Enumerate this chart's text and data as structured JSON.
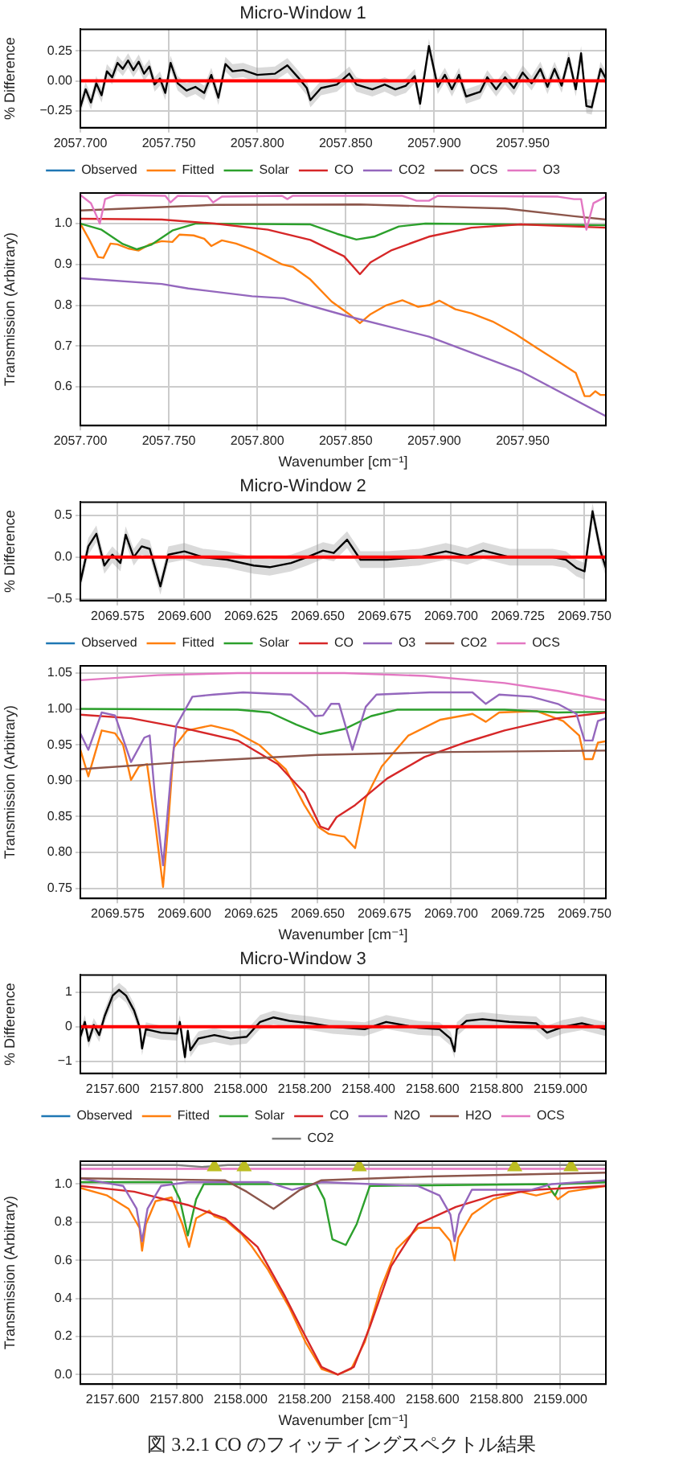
{
  "chart_data": [
    {
      "type": "line",
      "title": "Micro-Window 1",
      "ylabel": "% Difference",
      "grid": true,
      "xlim": [
        2057.7,
        2057.997
      ],
      "ylim": [
        -0.39,
        0.43
      ],
      "xticks": [
        {
          "value": 2057.7,
          "label": "2057.700"
        },
        {
          "value": 2057.75,
          "label": "2057.750"
        },
        {
          "value": 2057.8,
          "label": "2057.800"
        },
        {
          "value": 2057.85,
          "label": "2057.850"
        },
        {
          "value": 2057.9,
          "label": "2057.900"
        },
        {
          "value": 2057.95,
          "label": "2057.950"
        }
      ],
      "yticks": [
        {
          "value": -0.25,
          "label": "−0.25"
        },
        {
          "value": 0,
          "label": "0.00"
        },
        {
          "value": 0.25,
          "label": "0.25"
        }
      ],
      "ref_lines": [
        {
          "axis": "y",
          "value": 0,
          "color": "#ff0000"
        }
      ],
      "x": [
        2057.7,
        2057.703,
        2057.706,
        2057.709,
        2057.712,
        2057.715,
        2057.718,
        2057.721,
        2057.724,
        2057.727,
        2057.73,
        2057.733,
        2057.736,
        2057.739,
        2057.742,
        2057.745,
        2057.748,
        2057.751,
        2057.755,
        2057.76,
        2057.765,
        2057.77,
        2057.774,
        2057.778,
        2057.782,
        2057.786,
        2057.792,
        2057.8,
        2057.81,
        2057.817,
        2057.823,
        2057.828,
        2057.83,
        2057.836,
        2057.845,
        2057.852,
        2057.856,
        2057.865,
        2057.872,
        2057.878,
        2057.884,
        2057.889,
        2057.892,
        2057.897,
        2057.902,
        2057.906,
        2057.91,
        2057.914,
        2057.918,
        2057.926,
        2057.93,
        2057.935,
        2057.94,
        2057.945,
        2057.95,
        2057.955,
        2057.96,
        2057.964,
        2057.968,
        2057.972,
        2057.976,
        2057.98,
        2057.983,
        2057.986,
        2057.989,
        2057.994,
        2057.997
      ],
      "series": [
        {
          "color": "#000000",
          "values": [
            -0.22,
            -0.07,
            -0.18,
            -0.02,
            -0.12,
            0.08,
            0.03,
            0.15,
            0.1,
            0.17,
            0.09,
            0.16,
            0.06,
            0.12,
            -0.03,
            0.02,
            -0.1,
            0.15,
            -0.02,
            -0.08,
            -0.05,
            -0.1,
            0.05,
            -0.14,
            0.14,
            0.08,
            0.09,
            0.05,
            0.06,
            0.13,
            0.03,
            -0.06,
            -0.16,
            -0.06,
            -0.03,
            0.06,
            -0.03,
            -0.07,
            -0.03,
            -0.07,
            -0.04,
            0.04,
            -0.19,
            0.29,
            -0.05,
            0.05,
            -0.07,
            0.05,
            -0.13,
            -0.09,
            0.03,
            -0.07,
            0.03,
            -0.06,
            0.07,
            -0.02,
            0.1,
            -0.05,
            0.1,
            -0.04,
            0.19,
            -0.07,
            0.23,
            -0.21,
            -0.22,
            0.1,
            0.02
          ],
          "lower": [
            -0.28,
            -0.13,
            -0.24,
            -0.08,
            -0.18,
            0.02,
            -0.03,
            0.09,
            0.04,
            0.11,
            0.03,
            0.1,
            0.0,
            0.06,
            -0.09,
            -0.04,
            -0.16,
            0.09,
            -0.08,
            -0.14,
            -0.11,
            -0.16,
            -0.01,
            -0.2,
            0.08,
            0.02,
            0.03,
            -0.01,
            0.0,
            0.07,
            -0.03,
            -0.12,
            -0.22,
            -0.12,
            -0.09,
            0.0,
            -0.09,
            -0.13,
            -0.09,
            -0.13,
            -0.1,
            -0.02,
            -0.25,
            0.23,
            -0.11,
            -0.01,
            -0.13,
            -0.01,
            -0.19,
            -0.15,
            -0.03,
            -0.13,
            -0.03,
            -0.12,
            0.01,
            -0.08,
            0.04,
            -0.11,
            0.04,
            -0.1,
            0.13,
            -0.13,
            0.17,
            -0.27,
            -0.28,
            0.04,
            -0.04
          ],
          "upper": [
            -0.16,
            -0.01,
            -0.12,
            0.04,
            -0.06,
            0.14,
            0.09,
            0.21,
            0.16,
            0.23,
            0.15,
            0.22,
            0.12,
            0.18,
            0.03,
            0.08,
            -0.04,
            0.21,
            0.04,
            -0.02,
            0.01,
            -0.04,
            0.11,
            -0.08,
            0.2,
            0.14,
            0.15,
            0.11,
            0.12,
            0.19,
            0.09,
            0.0,
            -0.1,
            0.0,
            0.03,
            0.12,
            0.03,
            -0.01,
            0.03,
            -0.01,
            0.02,
            0.1,
            -0.13,
            0.35,
            0.01,
            0.11,
            -0.01,
            0.11,
            -0.07,
            -0.03,
            0.09,
            -0.01,
            0.09,
            0.0,
            0.13,
            0.04,
            0.16,
            0.01,
            0.16,
            0.02,
            0.25,
            -0.01,
            0.29,
            -0.15,
            -0.16,
            0.16,
            0.08
          ]
        }
      ]
    },
    {
      "type": "line",
      "xlabel": "Wavenumber [cm⁻¹]",
      "ylabel": "Transmission (Arbitrary)",
      "grid": true,
      "legend": "top",
      "xlim": [
        2057.7,
        2057.997
      ],
      "ylim": [
        0.505,
        1.075
      ],
      "xticks": [
        {
          "value": 2057.7,
          "label": "2057.700"
        },
        {
          "value": 2057.75,
          "label": "2057.750"
        },
        {
          "value": 2057.8,
          "label": "2057.800"
        },
        {
          "value": 2057.85,
          "label": "2057.850"
        },
        {
          "value": 2057.9,
          "label": "2057.900"
        },
        {
          "value": 2057.95,
          "label": "2057.950"
        }
      ],
      "yticks": [
        {
          "value": 0.6,
          "label": "0.6"
        },
        {
          "value": 0.7,
          "label": "0.7"
        },
        {
          "value": 0.8,
          "label": "0.8"
        },
        {
          "value": 0.9,
          "label": "0.9"
        },
        {
          "value": 1.0,
          "label": "1.0"
        }
      ],
      "x": [
        2057.7,
        2057.705,
        2057.71,
        2057.713,
        2057.717,
        2057.721,
        2057.727,
        2057.733,
        2057.739,
        2057.746,
        2057.752,
        2057.756,
        2057.764,
        2057.77,
        2057.774,
        2057.78,
        2057.788,
        2057.797,
        2057.806,
        2057.814,
        2057.82,
        2057.83,
        2057.842,
        2057.852,
        2057.858,
        2057.864,
        2057.873,
        2057.882,
        2057.891,
        2057.897,
        2057.903,
        2057.912,
        2057.921,
        2057.933,
        2057.946,
        2057.958,
        2057.97,
        2057.98,
        2057.985,
        2057.988,
        2057.991,
        2057.994,
        2057.997
      ],
      "series": [
        {
          "name": "Observed",
          "color": "#1f77b4",
          "values": [
            null,
            null,
            null,
            null,
            null,
            null,
            null,
            null,
            null,
            null,
            null,
            null,
            null,
            null,
            null,
            null,
            null,
            null,
            null,
            null,
            null,
            null,
            null,
            null,
            null,
            null,
            null,
            null,
            null,
            null,
            null,
            null,
            null,
            null,
            null,
            null,
            null,
            null,
            null,
            null,
            null,
            null,
            null
          ]
        },
        {
          "name": "Fitted",
          "color": "#ff7f0e",
          "values": [
            1.0,
            0.961,
            0.918,
            0.916,
            0.951,
            0.949,
            0.939,
            0.934,
            0.949,
            0.957,
            0.955,
            0.973,
            0.971,
            0.963,
            0.945,
            0.959,
            0.951,
            0.937,
            0.918,
            0.9,
            0.894,
            0.863,
            0.809,
            0.778,
            0.756,
            0.778,
            0.8,
            0.812,
            0.796,
            0.8,
            0.811,
            0.79,
            0.78,
            0.76,
            0.729,
            0.695,
            0.662,
            0.634,
            0.577,
            0.577,
            0.589,
            0.58,
            0.58
          ]
        },
        {
          "name": "Solar",
          "color": "#2ca02c",
          "x": [
            2057.7,
            2057.712,
            2057.724,
            2057.732,
            2057.74,
            2057.752,
            2057.765,
            2057.83,
            2057.845,
            2057.856,
            2057.866,
            2057.88,
            2057.895,
            2057.997
          ],
          "values": [
            1.0,
            0.985,
            0.95,
            0.937,
            0.948,
            0.983,
            1.0,
            0.998,
            0.975,
            0.961,
            0.968,
            0.993,
            1.0,
            0.996
          ]
        },
        {
          "name": "CO",
          "color": "#d62728",
          "x": [
            2057.7,
            2057.746,
            2057.776,
            2057.806,
            2057.83,
            2057.849,
            2057.858,
            2057.864,
            2057.876,
            2057.897,
            2057.921,
            2057.949,
            2057.997
          ],
          "values": [
            1.012,
            1.01,
            1.0,
            0.985,
            0.96,
            0.92,
            0.876,
            0.905,
            0.935,
            0.968,
            0.99,
            0.998,
            0.99
          ]
        },
        {
          "name": "CO2",
          "color": "#9467bd",
          "x": [
            2057.7,
            2057.746,
            2057.761,
            2057.797,
            2057.815,
            2057.852,
            2057.897,
            2057.949,
            2057.997
          ],
          "values": [
            0.866,
            0.852,
            0.841,
            0.822,
            0.817,
            0.772,
            0.723,
            0.638,
            0.528
          ]
        },
        {
          "name": "OCS",
          "color": "#8c564b",
          "x": [
            2057.7,
            2057.776,
            2057.858,
            2057.94,
            2057.979,
            2057.997
          ],
          "values": [
            1.032,
            1.046,
            1.047,
            1.037,
            1.018,
            1.01
          ]
        },
        {
          "name": "O3",
          "color": "#e377c2",
          "x": [
            2057.7,
            2057.706,
            2057.711,
            2057.714,
            2057.72,
            2057.748,
            2057.751,
            2057.755,
            2057.772,
            2057.775,
            2057.78,
            2057.814,
            2057.817,
            2057.82,
            2057.882,
            2057.89,
            2057.897,
            2057.902,
            2057.97,
            2057.979,
            2057.983,
            2057.986,
            2057.99,
            2057.997
          ],
          "values": [
            1.07,
            1.05,
            1.0,
            1.06,
            1.07,
            1.068,
            1.052,
            1.068,
            1.067,
            1.052,
            1.066,
            1.068,
            1.06,
            1.068,
            1.068,
            1.056,
            1.056,
            1.068,
            1.066,
            1.06,
            1.06,
            0.985,
            1.05,
            1.066
          ]
        }
      ]
    },
    {
      "type": "line",
      "title": "Micro-Window 2",
      "ylabel": "% Difference",
      "grid": true,
      "xlim": [
        2069.561,
        2069.758
      ],
      "ylim": [
        -0.52,
        0.66
      ],
      "xticks": [
        {
          "value": 2069.575,
          "label": "2069.575"
        },
        {
          "value": 2069.6,
          "label": "2069.600"
        },
        {
          "value": 2069.625,
          "label": "2069.625"
        },
        {
          "value": 2069.65,
          "label": "2069.650"
        },
        {
          "value": 2069.675,
          "label": "2069.675"
        },
        {
          "value": 2069.7,
          "label": "2069.700"
        },
        {
          "value": 2069.725,
          "label": "2069.725"
        },
        {
          "value": 2069.75,
          "label": "2069.750"
        }
      ],
      "yticks": [
        {
          "value": -0.5,
          "label": "−0.5"
        },
        {
          "value": 0,
          "label": "0.0"
        },
        {
          "value": 0.5,
          "label": "0.5"
        }
      ],
      "ref_lines": [
        {
          "axis": "y",
          "value": 0,
          "color": "#ff0000"
        }
      ],
      "x": [
        2069.561,
        2069.564,
        2069.567,
        2069.57,
        2069.573,
        2069.576,
        2069.578,
        2069.581,
        2069.584,
        2069.587,
        2069.591,
        2069.594,
        2069.6,
        2069.607,
        2069.616,
        2069.626,
        2069.632,
        2069.64,
        2069.646,
        2069.652,
        2069.656,
        2069.661,
        2069.666,
        2069.676,
        2069.688,
        2069.698,
        2069.706,
        2069.712,
        2069.722,
        2069.738,
        2069.743,
        2069.747,
        2069.75,
        2069.753,
        2069.756,
        2069.758
      ],
      "series": [
        {
          "color": "#000000",
          "values": [
            -0.3,
            0.13,
            0.28,
            -0.1,
            0.03,
            -0.07,
            0.27,
            0.0,
            0.13,
            0.1,
            -0.35,
            0.03,
            0.07,
            0.0,
            -0.03,
            -0.1,
            -0.12,
            -0.07,
            0.0,
            0.08,
            0.05,
            0.21,
            -0.03,
            -0.03,
            0.0,
            0.07,
            0.01,
            0.08,
            0.0,
            0.0,
            -0.03,
            -0.13,
            -0.17,
            0.55,
            0.07,
            -0.13
          ],
          "lower": [
            -0.4,
            0.03,
            0.18,
            -0.2,
            -0.07,
            -0.17,
            0.17,
            -0.1,
            0.03,
            0.0,
            -0.45,
            -0.07,
            -0.03,
            -0.1,
            -0.13,
            -0.2,
            -0.22,
            -0.17,
            -0.1,
            -0.02,
            -0.05,
            0.11,
            -0.13,
            -0.13,
            -0.1,
            -0.03,
            -0.09,
            -0.02,
            -0.1,
            -0.1,
            -0.13,
            -0.23,
            -0.27,
            0.45,
            -0.03,
            -0.23
          ],
          "upper": [
            -0.2,
            0.23,
            0.38,
            0.0,
            0.13,
            0.03,
            0.37,
            0.1,
            0.23,
            0.2,
            -0.25,
            0.13,
            0.17,
            0.1,
            0.07,
            0.0,
            -0.02,
            0.03,
            0.1,
            0.18,
            0.15,
            0.31,
            0.07,
            0.07,
            0.1,
            0.17,
            0.11,
            0.18,
            0.1,
            0.1,
            0.07,
            -0.03,
            -0.07,
            0.65,
            0.17,
            -0.03
          ]
        }
      ]
    },
    {
      "type": "line",
      "xlabel": "Wavenumber [cm⁻¹]",
      "ylabel": "Transmission (Arbitrary)",
      "grid": true,
      "legend": "top",
      "xlim": [
        2069.561,
        2069.758
      ],
      "ylim": [
        0.736,
        1.06
      ],
      "xticks": [
        {
          "value": 2069.575,
          "label": "2069.575"
        },
        {
          "value": 2069.6,
          "label": "2069.600"
        },
        {
          "value": 2069.625,
          "label": "2069.625"
        },
        {
          "value": 2069.65,
          "label": "2069.650"
        },
        {
          "value": 2069.675,
          "label": "2069.675"
        },
        {
          "value": 2069.7,
          "label": "2069.700"
        },
        {
          "value": 2069.725,
          "label": "2069.725"
        },
        {
          "value": 2069.75,
          "label": "2069.750"
        }
      ],
      "yticks": [
        {
          "value": 0.75,
          "label": "0.75"
        },
        {
          "value": 0.8,
          "label": "0.80"
        },
        {
          "value": 0.85,
          "label": "0.85"
        },
        {
          "value": 0.9,
          "label": "0.90"
        },
        {
          "value": 0.95,
          "label": "0.95"
        },
        {
          "value": 1.0,
          "label": "1.00"
        },
        {
          "value": 1.05,
          "label": "1.05"
        }
      ],
      "x": [
        2069.561,
        2069.564,
        2069.569,
        2069.574,
        2069.577,
        2069.58,
        2069.583,
        2069.586,
        2069.589,
        2069.592,
        2069.594,
        2069.596,
        2069.601,
        2069.61,
        2069.618,
        2069.628,
        2069.638,
        2069.645,
        2069.65,
        2069.654,
        2069.66,
        2069.664,
        2069.668,
        2069.674,
        2069.684,
        2069.696,
        2069.708,
        2069.713,
        2069.718,
        2069.732,
        2069.742,
        2069.748,
        2069.75,
        2069.753,
        2069.755,
        2069.758
      ],
      "series": [
        {
          "name": "Observed",
          "color": "#1f77b4",
          "values": [
            null,
            null,
            null,
            null,
            null,
            null,
            null,
            null,
            null,
            null,
            null,
            null,
            null,
            null,
            null,
            null,
            null,
            null,
            null,
            null,
            null,
            null,
            null,
            null,
            null,
            null,
            null,
            null,
            null,
            null,
            null,
            null,
            null,
            null,
            null,
            null
          ]
        },
        {
          "name": "Fitted",
          "color": "#ff7f0e",
          "values": [
            0.943,
            0.906,
            0.97,
            0.966,
            0.95,
            0.901,
            0.92,
            0.923,
            0.842,
            0.752,
            0.842,
            0.946,
            0.97,
            0.977,
            0.97,
            0.95,
            0.916,
            0.866,
            0.836,
            0.826,
            0.822,
            0.806,
            0.876,
            0.92,
            0.963,
            0.985,
            0.993,
            0.982,
            0.995,
            0.997,
            0.983,
            0.963,
            0.93,
            0.93,
            0.953,
            0.955
          ]
        },
        {
          "name": "Solar",
          "color": "#2ca02c",
          "x": [
            2069.561,
            2069.62,
            2069.632,
            2069.642,
            2069.651,
            2069.66,
            2069.67,
            2069.68,
            2069.72,
            2069.74,
            2069.758
          ],
          "values": [
            1.0,
            0.999,
            0.995,
            0.978,
            0.965,
            0.972,
            0.99,
            0.999,
            0.999,
            0.995,
            0.996
          ]
        },
        {
          "name": "CO",
          "color": "#d62728",
          "x": [
            2069.561,
            2069.58,
            2069.6,
            2069.62,
            2069.635,
            2069.645,
            2069.651,
            2069.654,
            2069.657,
            2069.664,
            2069.676,
            2069.69,
            2069.705,
            2069.72,
            2069.74,
            2069.758
          ],
          "values": [
            0.992,
            0.987,
            0.973,
            0.956,
            0.923,
            0.883,
            0.836,
            0.832,
            0.849,
            0.866,
            0.903,
            0.933,
            0.953,
            0.97,
            0.987,
            0.995
          ]
        },
        {
          "name": "O3",
          "color": "#9467bd",
          "x": [
            2069.561,
            2069.564,
            2069.569,
            2069.574,
            2069.58,
            2069.585,
            2069.587,
            2069.589,
            2069.592,
            2069.595,
            2069.597,
            2069.603,
            2069.611,
            2069.622,
            2069.64,
            2069.646,
            2069.649,
            2069.652,
            2069.655,
            2069.658,
            2069.663,
            2069.668,
            2069.672,
            2069.692,
            2069.708,
            2069.713,
            2069.718,
            2069.73,
            2069.74,
            2069.747,
            2069.75,
            2069.753,
            2069.755,
            2069.758
          ],
          "values": [
            0.966,
            0.943,
            0.995,
            0.991,
            0.926,
            0.96,
            0.963,
            0.876,
            0.782,
            0.91,
            0.977,
            1.017,
            1.02,
            1.023,
            1.02,
            1.003,
            0.99,
            0.991,
            1.007,
            1.007,
            0.943,
            1.003,
            1.02,
            1.023,
            1.023,
            1.007,
            1.02,
            1.017,
            1.007,
            0.993,
            0.956,
            0.956,
            0.983,
            0.987
          ]
        },
        {
          "name": "CO2",
          "color": "#8c564b",
          "x": [
            2069.561,
            2069.6,
            2069.65,
            2069.7,
            2069.758
          ],
          "values": [
            0.916,
            0.926,
            0.936,
            0.94,
            0.942
          ]
        },
        {
          "name": "OCS",
          "color": "#e377c2",
          "x": [
            2069.561,
            2069.59,
            2069.62,
            2069.66,
            2069.69,
            2069.72,
            2069.74,
            2069.758
          ],
          "values": [
            1.04,
            1.047,
            1.05,
            1.05,
            1.046,
            1.036,
            1.025,
            1.012
          ]
        }
      ]
    },
    {
      "type": "line",
      "title": "Micro-Window 3",
      "ylabel": "% Difference",
      "grid": true,
      "xlim": [
        2157.499,
        2159.142
      ],
      "ylim": [
        -1.35,
        1.5
      ],
      "xticks": [
        {
          "value": 2157.6,
          "label": "2157.600"
        },
        {
          "value": 2157.8,
          "label": "2157.800"
        },
        {
          "value": 2158.0,
          "label": "2158.000"
        },
        {
          "value": 2158.2,
          "label": "2158.200"
        },
        {
          "value": 2158.4,
          "label": "2158.400"
        },
        {
          "value": 2158.6,
          "label": "2158.600"
        },
        {
          "value": 2158.8,
          "label": "2158.800"
        },
        {
          "value": 2159.0,
          "label": "2159.000"
        }
      ],
      "yticks": [
        {
          "value": -1,
          "label": "−1"
        },
        {
          "value": 0,
          "label": "0"
        },
        {
          "value": 1,
          "label": "1"
        }
      ],
      "ref_lines": [
        {
          "axis": "y",
          "value": 0,
          "color": "#ff0000"
        }
      ],
      "x": [
        2157.499,
        2157.513,
        2157.525,
        2157.541,
        2157.558,
        2157.575,
        2157.6,
        2157.62,
        2157.642,
        2157.667,
        2157.684,
        2157.692,
        2157.704,
        2157.751,
        2157.801,
        2157.81,
        2157.826,
        2157.835,
        2157.843,
        2157.868,
        2157.918,
        2157.969,
        2158.019,
        2158.061,
        2158.103,
        2158.153,
        2158.22,
        2158.287,
        2158.388,
        2158.455,
        2158.555,
        2158.622,
        2158.656,
        2158.669,
        2158.676,
        2158.706,
        2158.756,
        2158.84,
        2158.924,
        2158.958,
        2159.008,
        2159.067,
        2159.142
      ],
      "series": [
        {
          "color": "#000000",
          "values": [
            -0.29,
            0.14,
            -0.41,
            0.05,
            -0.24,
            0.31,
            0.9,
            1.07,
            0.9,
            0.47,
            0.0,
            -0.63,
            -0.07,
            -0.17,
            -0.2,
            0.14,
            -0.88,
            -0.12,
            -0.68,
            -0.34,
            -0.24,
            -0.34,
            -0.29,
            0.14,
            0.27,
            0.17,
            0.1,
            0.0,
            -0.07,
            0.14,
            -0.03,
            -0.07,
            -0.34,
            -0.71,
            -0.07,
            0.17,
            0.22,
            0.14,
            0.1,
            -0.17,
            0.0,
            0.1,
            -0.07
          ],
          "lower": [
            -0.49,
            -0.06,
            -0.61,
            -0.15,
            -0.44,
            0.11,
            0.7,
            0.87,
            0.7,
            0.27,
            -0.2,
            -0.83,
            -0.27,
            -0.37,
            -0.4,
            -0.06,
            -1.08,
            -0.32,
            -0.88,
            -0.54,
            -0.44,
            -0.54,
            -0.49,
            -0.06,
            0.07,
            -0.03,
            -0.1,
            -0.2,
            -0.27,
            -0.06,
            -0.23,
            -0.27,
            -0.54,
            -0.91,
            -0.27,
            -0.03,
            0.02,
            -0.06,
            -0.1,
            -0.37,
            -0.2,
            -0.1,
            -0.27
          ],
          "upper": [
            -0.09,
            0.34,
            -0.21,
            0.25,
            -0.04,
            0.51,
            1.1,
            1.27,
            1.1,
            0.67,
            0.2,
            -0.43,
            0.13,
            0.03,
            0.0,
            0.34,
            -0.68,
            0.08,
            -0.48,
            -0.14,
            -0.04,
            -0.14,
            -0.09,
            0.34,
            0.47,
            0.37,
            0.3,
            0.2,
            0.13,
            0.34,
            0.17,
            0.13,
            -0.14,
            -0.51,
            0.13,
            0.37,
            0.42,
            0.34,
            0.3,
            0.03,
            0.2,
            0.3,
            0.13
          ]
        }
      ]
    },
    {
      "type": "line",
      "xlabel": "Wavenumber [cm⁻¹]",
      "ylabel": "Transmission (Arbitrary)",
      "grid": true,
      "legend": "top",
      "annotations": [
        "図 3.2.1 CO のフィッティングスペクトル結果"
      ],
      "xlim": [
        2157.499,
        2159.142
      ],
      "ylim": [
        -0.05,
        1.12
      ],
      "xticks": [
        {
          "value": 2157.6,
          "label": "2157.600"
        },
        {
          "value": 2157.8,
          "label": "2157.800"
        },
        {
          "value": 2158.0,
          "label": "2158.000"
        },
        {
          "value": 2158.2,
          "label": "2158.200"
        },
        {
          "value": 2158.4,
          "label": "2158.400"
        },
        {
          "value": 2158.6,
          "label": "2158.600"
        },
        {
          "value": 2158.8,
          "label": "2158.800"
        },
        {
          "value": 2159.0,
          "label": "2159.000"
        }
      ],
      "yticks": [
        {
          "value": 0,
          "label": "0.0"
        },
        {
          "value": 0.2,
          "label": "0.2"
        },
        {
          "value": 0.4,
          "label": "0.4"
        },
        {
          "value": 0.6,
          "label": "0.6"
        },
        {
          "value": 0.8,
          "label": "0.8"
        },
        {
          "value": 1.0,
          "label": "1.0"
        }
      ],
      "x": [
        2157.499,
        2157.583,
        2157.65,
        2157.684,
        2157.692,
        2157.704,
        2157.734,
        2157.784,
        2157.818,
        2157.839,
        2157.861,
        2157.902,
        2157.919,
        2157.952,
        2158.002,
        2158.036,
        2158.086,
        2158.153,
        2158.203,
        2158.253,
        2158.304,
        2158.346,
        2158.388,
        2158.438,
        2158.488,
        2158.555,
        2158.622,
        2158.656,
        2158.669,
        2158.681,
        2158.723,
        2158.79,
        2158.874,
        2158.924,
        2158.974,
        2158.992,
        2159.025,
        2159.142
      ],
      "series": [
        {
          "name": "Observed",
          "color": "#1f77b4",
          "values": [
            null,
            null,
            null,
            null,
            null,
            null,
            null,
            null,
            null,
            null,
            null,
            null,
            null,
            null,
            null,
            null,
            null,
            null,
            null,
            null,
            null,
            null,
            null,
            null,
            null,
            null,
            null,
            null,
            null,
            null,
            null,
            null,
            null,
            null,
            null,
            null,
            null,
            null
          ]
        },
        {
          "name": "Fitted",
          "color": "#ff7f0e",
          "values": [
            0.98,
            0.94,
            0.87,
            0.77,
            0.65,
            0.79,
            0.91,
            0.93,
            0.79,
            0.67,
            0.82,
            0.86,
            0.83,
            0.81,
            0.74,
            0.67,
            0.55,
            0.35,
            0.17,
            0.03,
            0.0,
            0.03,
            0.17,
            0.45,
            0.66,
            0.77,
            0.77,
            0.7,
            0.6,
            0.72,
            0.84,
            0.92,
            0.96,
            0.94,
            0.96,
            0.92,
            0.96,
            0.99
          ]
        },
        {
          "name": "Solar",
          "color": "#2ca02c",
          "x": [
            2157.499,
            2157.784,
            2157.81,
            2157.835,
            2157.861,
            2157.885,
            2158.237,
            2158.262,
            2158.287,
            2158.329,
            2158.363,
            2158.404,
            2158.958,
            2158.983,
            2159.0,
            2159.142
          ],
          "values": [
            1.01,
            1.01,
            0.92,
            0.73,
            0.92,
            1.0,
            1.0,
            0.92,
            0.71,
            0.68,
            0.79,
            0.99,
            1.0,
            0.94,
            1.0,
            1.01
          ]
        },
        {
          "name": "CO",
          "color": "#d62728",
          "x": [
            2157.499,
            2157.667,
            2157.835,
            2157.952,
            2158.053,
            2158.136,
            2158.203,
            2158.253,
            2158.304,
            2158.354,
            2158.404,
            2158.471,
            2158.555,
            2158.673,
            2158.79,
            2158.924,
            2159.142
          ],
          "values": [
            0.99,
            0.96,
            0.89,
            0.82,
            0.67,
            0.42,
            0.2,
            0.04,
            0.0,
            0.04,
            0.25,
            0.57,
            0.79,
            0.88,
            0.94,
            0.97,
            0.99
          ]
        },
        {
          "name": "N2O",
          "color": "#9467bd",
          "x": [
            2157.499,
            2157.633,
            2157.675,
            2157.692,
            2157.709,
            2157.751,
            2157.835,
            2158.086,
            2158.161,
            2158.253,
            2158.555,
            2158.622,
            2158.656,
            2158.669,
            2158.683,
            2158.723,
            2158.908,
            2158.974,
            2159.142
          ],
          "values": [
            1.03,
            0.99,
            0.87,
            0.7,
            0.87,
            0.99,
            1.01,
            1.01,
            0.97,
            1.01,
            0.99,
            0.94,
            0.84,
            0.7,
            0.84,
            0.97,
            0.97,
            1.0,
            1.02
          ]
        },
        {
          "name": "H2O",
          "color": "#8c564b",
          "x": [
            2157.499,
            2157.952,
            2158.019,
            2158.103,
            2158.186,
            2158.253,
            2158.589,
            2159.142
          ],
          "values": [
            1.03,
            1.02,
            0.96,
            0.87,
            0.97,
            1.02,
            1.04,
            1.06
          ]
        },
        {
          "name": "OCS",
          "color": "#e377c2",
          "x": [
            2157.499,
            2159.142
          ],
          "values": [
            1.08,
            1.08
          ]
        },
        {
          "name": "CO2",
          "color": "#7f7f7f",
          "x": [
            2157.499,
            2157.8,
            2157.88,
            2157.96,
            2158.2,
            2159.142
          ],
          "values": [
            1.1,
            1.1,
            1.09,
            1.1,
            1.1,
            1.1
          ]
        },
        {
          "type": "scatter",
          "marker": "triangle",
          "color": "#bcbd22",
          "x": [
            2157.918,
            2158.011,
            2158.371,
            2158.857,
            2159.033
          ],
          "values": [
            1.09,
            1.09,
            1.09,
            1.09,
            1.09
          ]
        }
      ]
    }
  ]
}
